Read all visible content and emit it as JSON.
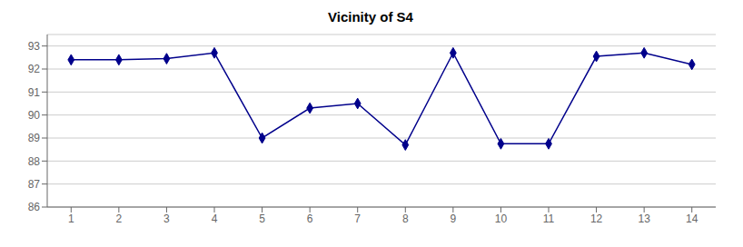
{
  "chart_data": {
    "type": "line",
    "title": "Vicinity of S4",
    "x": [
      1,
      2,
      3,
      4,
      5,
      6,
      7,
      8,
      9,
      10,
      11,
      12,
      13,
      14
    ],
    "values": [
      92.4,
      92.4,
      92.45,
      92.7,
      89.0,
      90.3,
      90.5,
      88.7,
      92.7,
      88.75,
      88.75,
      92.55,
      92.7,
      92.2
    ],
    "color": "#00008B",
    "marker": "diamond",
    "xlim": [
      0.5,
      14.5
    ],
    "xticks": [
      1,
      2,
      3,
      4,
      5,
      6,
      7,
      8,
      9,
      10,
      11,
      12,
      13,
      14
    ],
    "ylim": [
      86,
      93.5
    ],
    "yticks": [
      86,
      87,
      88,
      89,
      90,
      91,
      92,
      93
    ],
    "grid": true
  }
}
